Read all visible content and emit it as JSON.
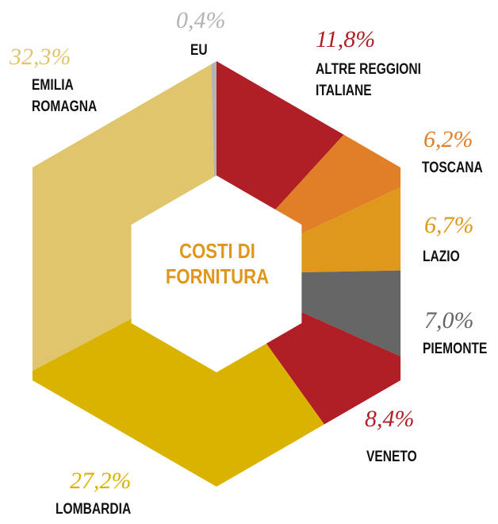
{
  "chart_data": {
    "type": "hexdonut",
    "title": "COSTI DI FORNITURA",
    "categories": [
      "EU",
      "ALTRE REGGIONI ITALIANE",
      "TOSCANA",
      "LAZIO",
      "PIEMONTE",
      "VENETO",
      "LOMBARDIA",
      "EMILIA ROMAGNA"
    ],
    "values": [
      0.4,
      11.8,
      6.2,
      6.7,
      7.0,
      8.4,
      27.2,
      32.3
    ],
    "value_labels": [
      "0,4%",
      "11,8%",
      "6,2%",
      "6,7%",
      "7,0%",
      "8,4%",
      "27,2%",
      "32,3%"
    ],
    "colors": [
      "#b3b3b3",
      "#b01e26",
      "#e07f27",
      "#e0981c",
      "#666666",
      "#b01e26",
      "#dab200",
      "#e0c56c"
    ]
  }
}
